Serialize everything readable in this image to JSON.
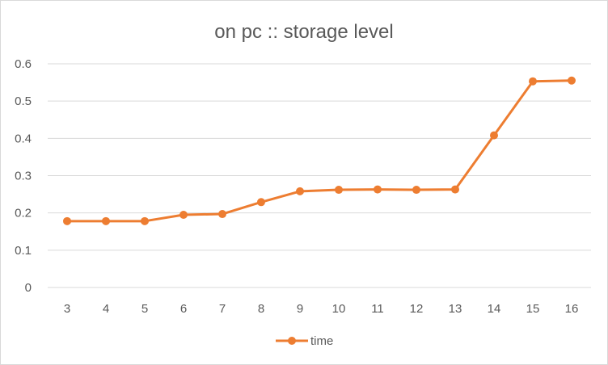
{
  "chart_data": {
    "type": "line",
    "title": "on pc :: storage level",
    "xlabel": "",
    "ylabel": "",
    "categories": [
      "3",
      "4",
      "5",
      "6",
      "7",
      "8",
      "9",
      "10",
      "11",
      "12",
      "13",
      "14",
      "15",
      "16"
    ],
    "series": [
      {
        "name": "time",
        "color": "#ed7d31",
        "values": [
          0.178,
          0.178,
          0.178,
          0.195,
          0.197,
          0.229,
          0.258,
          0.262,
          0.263,
          0.262,
          0.263,
          0.408,
          0.553,
          0.555
        ]
      }
    ],
    "ylim": [
      0,
      0.6
    ],
    "yticks": [
      "0",
      "0.1",
      "0.2",
      "0.3",
      "0.4",
      "0.5",
      "0.6"
    ],
    "grid": true,
    "legend": "bottom"
  }
}
